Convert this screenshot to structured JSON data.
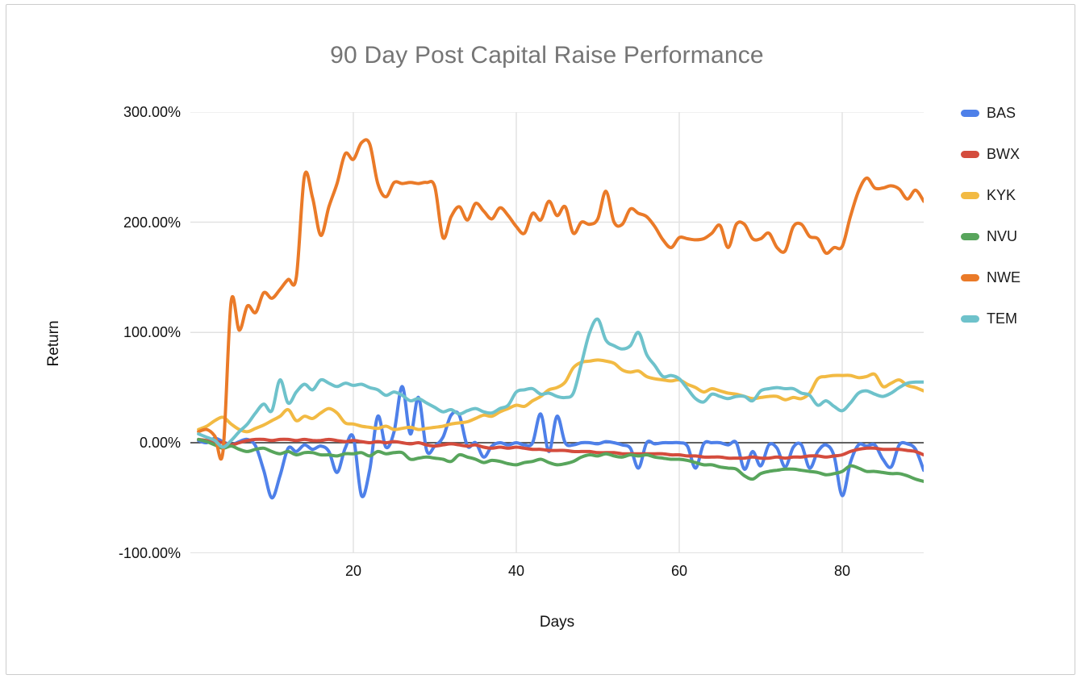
{
  "chart": {
    "title": "90 Day Post Capital Raise Performance",
    "title_color": "#757575",
    "background": "#ffffff",
    "border_color": "#cccccc",
    "gridline_color": "#e2e2e2",
    "zero_line_color": "#4a4a4a",
    "axis_text_color": "#111111",
    "y_axis": {
      "label": "Return",
      "tick_labels": [
        "300.00%",
        "200.00%",
        "100.00%",
        "0.00%",
        "-100.00%"
      ],
      "tick_values": [
        300,
        200,
        100,
        0,
        -100
      ]
    },
    "x_axis": {
      "label": "Days",
      "tick_labels": [
        "20",
        "40",
        "60",
        "80"
      ],
      "tick_values": [
        20,
        40,
        60,
        80
      ]
    }
  },
  "chart_data": {
    "type": "line",
    "title": "90 Day Post Capital Raise Performance",
    "xlabel": "Days",
    "ylabel": "Return",
    "xlim": [
      0,
      90
    ],
    "ylim": [
      -100,
      300
    ],
    "y_unit": "percent",
    "grid": true,
    "legend_position": "right",
    "line_style": "smooth",
    "x": [
      1,
      2,
      3,
      4,
      5,
      6,
      7,
      8,
      9,
      10,
      11,
      12,
      13,
      14,
      15,
      16,
      17,
      18,
      19,
      20,
      21,
      22,
      23,
      24,
      25,
      26,
      27,
      28,
      29,
      30,
      31,
      32,
      33,
      34,
      35,
      36,
      37,
      38,
      39,
      40,
      41,
      42,
      43,
      44,
      45,
      46,
      47,
      48,
      49,
      50,
      51,
      52,
      53,
      54,
      55,
      56,
      57,
      58,
      59,
      60,
      61,
      62,
      63,
      64,
      65,
      66,
      67,
      68,
      69,
      70,
      71,
      72,
      73,
      74,
      75,
      76,
      77,
      78,
      79,
      80,
      81,
      82,
      83,
      84,
      85,
      86,
      87,
      88,
      89,
      90
    ],
    "series": [
      {
        "name": "BAS",
        "color": "#4e80e9",
        "values": [
          2,
          0,
          4,
          1,
          -2,
          1,
          3,
          -3,
          -25,
          -50,
          -30,
          -5,
          -8,
          -2,
          -6,
          -3,
          -8,
          -27,
          -5,
          5,
          -48,
          -25,
          24,
          -4,
          10,
          51,
          8,
          41,
          -7,
          -3,
          5,
          25,
          25,
          -3,
          0,
          -13,
          -3,
          0,
          -2,
          0,
          -2,
          0,
          26,
          -8,
          24,
          0,
          -2,
          0,
          0,
          -1,
          1,
          0,
          -2,
          -5,
          -23,
          0,
          -1,
          0,
          0,
          0,
          -3,
          -23,
          -1,
          0,
          0,
          -2,
          0,
          -24,
          -8,
          -21,
          -2,
          -5,
          -22,
          -4,
          -2,
          -23,
          -8,
          -2,
          -12,
          -48,
          -18,
          -2,
          -3,
          -2,
          -15,
          -22,
          -2,
          -1,
          -6,
          -25
        ]
      },
      {
        "name": "BWX",
        "color": "#d44c3d",
        "values": [
          3,
          2,
          1,
          0,
          -2,
          0,
          2,
          3,
          3,
          2,
          3,
          3,
          2,
          3,
          2,
          2,
          3,
          2,
          1,
          2,
          1,
          0,
          1,
          0,
          1,
          0,
          -1,
          0,
          -2,
          -3,
          -2,
          -1,
          -2,
          -3,
          -2,
          -4,
          -5,
          -4,
          -5,
          -4,
          -5,
          -6,
          -6,
          -7,
          -7,
          -7,
          -8,
          -8,
          -8,
          -9,
          -9,
          -9,
          -10,
          -10,
          -10,
          -10,
          -10,
          -10,
          -11,
          -11,
          -12,
          -12,
          -13,
          -13,
          -13,
          -14,
          -14,
          -14,
          -13,
          -14,
          -14,
          -13,
          -14,
          -13,
          -13,
          -12,
          -12,
          -13,
          -12,
          -11,
          -8,
          -6,
          -5,
          -5,
          -6,
          -6,
          -6,
          -7,
          -8,
          -11
        ]
      },
      {
        "name": "KYK",
        "color": "#f2ba43",
        "values": [
          12,
          15,
          20,
          23,
          17,
          12,
          10,
          13,
          16,
          20,
          24,
          30,
          20,
          24,
          22,
          27,
          31,
          27,
          18,
          17,
          15,
          14,
          13,
          15,
          12,
          13,
          14,
          12,
          13,
          14,
          15,
          17,
          18,
          19,
          22,
          25,
          24,
          28,
          31,
          34,
          33,
          38,
          42,
          48,
          50,
          55,
          68,
          73,
          74,
          75,
          74,
          72,
          66,
          64,
          65,
          60,
          58,
          57,
          56,
          57,
          53,
          50,
          46,
          49,
          47,
          45,
          44,
          42,
          40,
          41,
          42,
          42,
          39,
          41,
          40,
          45,
          58,
          60,
          61,
          61,
          61,
          59,
          60,
          62,
          51,
          54,
          57,
          52,
          50,
          47
        ]
      },
      {
        "name": "NVU",
        "color": "#58a55c",
        "values": [
          3,
          1,
          -2,
          -5,
          -3,
          -6,
          -8,
          -6,
          -5,
          -8,
          -10,
          -8,
          -11,
          -9,
          -9,
          -11,
          -11,
          -12,
          -10,
          -10,
          -9,
          -12,
          -8,
          -10,
          -9,
          -9,
          -15,
          -14,
          -13,
          -14,
          -15,
          -17,
          -11,
          -13,
          -15,
          -18,
          -16,
          -17,
          -19,
          -20,
          -18,
          -17,
          -15,
          -18,
          -20,
          -19,
          -17,
          -13,
          -11,
          -12,
          -10,
          -12,
          -13,
          -11,
          -12,
          -11,
          -13,
          -14,
          -15,
          -15,
          -16,
          -18,
          -20,
          -20,
          -22,
          -23,
          -24,
          -30,
          -33,
          -28,
          -26,
          -25,
          -24,
          -24,
          -25,
          -26,
          -27,
          -29,
          -28,
          -26,
          -21,
          -23,
          -26,
          -26,
          -27,
          -28,
          -28,
          -30,
          -33,
          -35
        ]
      },
      {
        "name": "NWE",
        "color": "#ea7a28",
        "values": [
          10,
          12,
          6,
          -8,
          128,
          102,
          124,
          118,
          136,
          131,
          139,
          148,
          150,
          242,
          222,
          188,
          214,
          235,
          262,
          257,
          272,
          271,
          235,
          223,
          236,
          235,
          236,
          235,
          236,
          232,
          186,
          205,
          214,
          202,
          217,
          210,
          203,
          213,
          206,
          196,
          190,
          208,
          202,
          219,
          206,
          214,
          190,
          200,
          198,
          203,
          228,
          200,
          198,
          212,
          208,
          205,
          196,
          184,
          177,
          186,
          185,
          184,
          185,
          190,
          197,
          177,
          198,
          198,
          185,
          185,
          190,
          177,
          174,
          196,
          198,
          187,
          185,
          172,
          177,
          178,
          205,
          228,
          240,
          231,
          231,
          233,
          230,
          221,
          229,
          219
        ]
      },
      {
        "name": "TEM",
        "color": "#6ec2cb",
        "values": [
          8,
          5,
          2,
          -4,
          2,
          10,
          17,
          27,
          35,
          29,
          57,
          36,
          46,
          53,
          48,
          57,
          54,
          51,
          54,
          52,
          53,
          50,
          48,
          43,
          46,
          43,
          38,
          40,
          36,
          32,
          28,
          30,
          26,
          29,
          31,
          28,
          27,
          31,
          34,
          46,
          48,
          49,
          44,
          45,
          42,
          41,
          45,
          72,
          100,
          112,
          93,
          88,
          85,
          88,
          100,
          80,
          70,
          60,
          61,
          58,
          49,
          40,
          37,
          44,
          42,
          40,
          42,
          42,
          38,
          47,
          49,
          50,
          49,
          49,
          45,
          43,
          34,
          38,
          33,
          29,
          36,
          45,
          47,
          44,
          42,
          45,
          50,
          54,
          55,
          55
        ]
      }
    ]
  }
}
